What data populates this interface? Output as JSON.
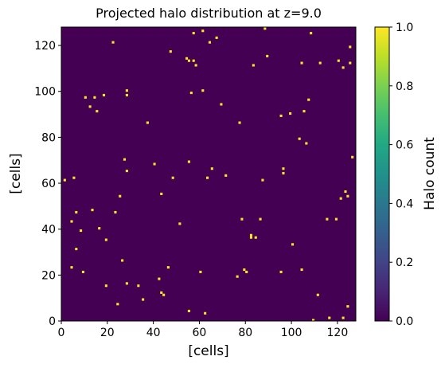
{
  "chart_data": {
    "type": "heatmap",
    "title": "Projected halo distribution at z=9.0",
    "xlabel": "[cells]",
    "ylabel": "[cells]",
    "xlim": [
      0,
      128
    ],
    "ylim": [
      0,
      128
    ],
    "x_ticks": [
      0,
      20,
      40,
      60,
      80,
      100,
      120
    ],
    "y_ticks": [
      0,
      20,
      40,
      60,
      80,
      100,
      120
    ],
    "grid": false,
    "colormap": "viridis",
    "background_color": "#440154",
    "halo_color": "#fde725",
    "colorbar": {
      "label": "Halo count",
      "range": [
        0.0,
        1.0
      ],
      "ticks": [
        "0.0",
        "0.2",
        "0.4",
        "0.6",
        "0.8",
        "1.0"
      ],
      "colors": [
        "#440154",
        "#482475",
        "#414487",
        "#355f8d",
        "#2a788e",
        "#21918c",
        "#22a884",
        "#44bf70",
        "#7ad151",
        "#bddf26",
        "#fde725"
      ]
    },
    "points": [
      [
        1,
        61
      ],
      [
        5,
        62
      ],
      [
        6,
        47
      ],
      [
        8,
        39
      ],
      [
        4,
        43
      ],
      [
        6,
        31
      ],
      [
        4,
        23
      ],
      [
        9,
        21
      ],
      [
        10,
        97
      ],
      [
        12,
        93
      ],
      [
        14,
        97
      ],
      [
        15,
        91
      ],
      [
        18,
        98
      ],
      [
        13,
        48
      ],
      [
        16,
        40
      ],
      [
        19,
        35
      ],
      [
        19,
        15
      ],
      [
        22,
        121
      ],
      [
        23,
        47
      ],
      [
        25,
        54
      ],
      [
        24,
        7
      ],
      [
        26,
        26
      ],
      [
        28,
        16
      ],
      [
        27,
        70
      ],
      [
        28,
        98
      ],
      [
        28,
        100
      ],
      [
        28,
        65
      ],
      [
        33,
        15
      ],
      [
        35,
        9
      ],
      [
        37,
        86
      ],
      [
        40,
        68
      ],
      [
        42,
        18
      ],
      [
        43,
        55
      ],
      [
        43,
        12
      ],
      [
        44,
        11
      ],
      [
        46,
        23
      ],
      [
        47,
        117
      ],
      [
        48,
        62
      ],
      [
        51,
        42
      ],
      [
        54,
        114
      ],
      [
        55,
        113
      ],
      [
        56,
        99
      ],
      [
        55,
        69
      ],
      [
        55,
        4
      ],
      [
        57,
        113
      ],
      [
        57,
        125
      ],
      [
        58,
        111
      ],
      [
        60,
        21
      ],
      [
        61,
        100
      ],
      [
        61,
        126
      ],
      [
        62,
        3
      ],
      [
        63,
        62
      ],
      [
        64,
        121
      ],
      [
        65,
        66
      ],
      [
        67,
        123
      ],
      [
        69,
        94
      ],
      [
        71,
        63
      ],
      [
        76,
        19
      ],
      [
        77,
        86
      ],
      [
        78,
        44
      ],
      [
        79,
        22
      ],
      [
        80,
        21
      ],
      [
        82,
        36
      ],
      [
        82,
        37
      ],
      [
        83,
        111
      ],
      [
        84,
        36
      ],
      [
        86,
        44
      ],
      [
        87,
        61
      ],
      [
        88,
        127
      ],
      [
        89,
        115
      ],
      [
        95,
        89
      ],
      [
        95,
        21
      ],
      [
        96,
        64
      ],
      [
        96,
        66
      ],
      [
        99,
        90
      ],
      [
        100,
        33
      ],
      [
        103,
        79
      ],
      [
        104,
        112
      ],
      [
        104,
        22
      ],
      [
        105,
        91
      ],
      [
        106,
        77
      ],
      [
        107,
        96
      ],
      [
        108,
        125
      ],
      [
        109,
        0
      ],
      [
        111,
        11
      ],
      [
        112,
        112
      ],
      [
        115,
        44
      ],
      [
        116,
        1
      ],
      [
        119,
        44
      ],
      [
        120,
        113
      ],
      [
        121,
        53
      ],
      [
        122,
        110
      ],
      [
        122,
        1
      ],
      [
        123,
        56
      ],
      [
        124,
        54
      ],
      [
        124,
        6
      ],
      [
        125,
        112
      ],
      [
        125,
        119
      ],
      [
        126,
        71
      ]
    ]
  }
}
